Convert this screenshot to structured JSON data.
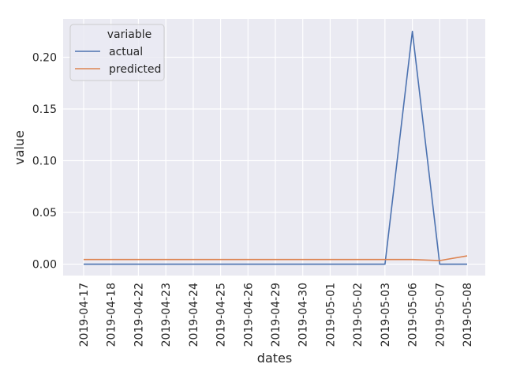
{
  "chart_data": {
    "type": "line",
    "xlabel": "dates",
    "ylabel": "value",
    "categories": [
      "2019-04-17",
      "2019-04-18",
      "2019-04-22",
      "2019-04-23",
      "2019-04-24",
      "2019-04-25",
      "2019-04-26",
      "2019-04-29",
      "2019-04-30",
      "2019-05-01",
      "2019-05-02",
      "2019-05-03",
      "2019-05-06",
      "2019-05-07",
      "2019-05-08"
    ],
    "ylim": [
      -0.011,
      0.237
    ],
    "yticks": [
      0.0,
      0.05,
      0.1,
      0.15,
      0.2
    ],
    "ytick_labels": [
      "0.00",
      "0.05",
      "0.10",
      "0.15",
      "0.20"
    ],
    "grid": true,
    "legend": {
      "title": "variable",
      "placement": "top-left"
    },
    "series": [
      {
        "name": "actual",
        "color": "#4c72b0",
        "values": [
          0,
          0,
          0,
          0,
          0,
          0,
          0,
          0,
          0,
          0,
          0,
          0,
          0.225,
          0,
          0
        ]
      },
      {
        "name": "predicted",
        "color": "#dd8452",
        "values": [
          0.0045,
          0.0045,
          0.0045,
          0.0045,
          0.0045,
          0.0045,
          0.0045,
          0.0045,
          0.0045,
          0.0045,
          0.0045,
          0.0045,
          0.0045,
          0.0035,
          0.008
        ]
      }
    ]
  }
}
